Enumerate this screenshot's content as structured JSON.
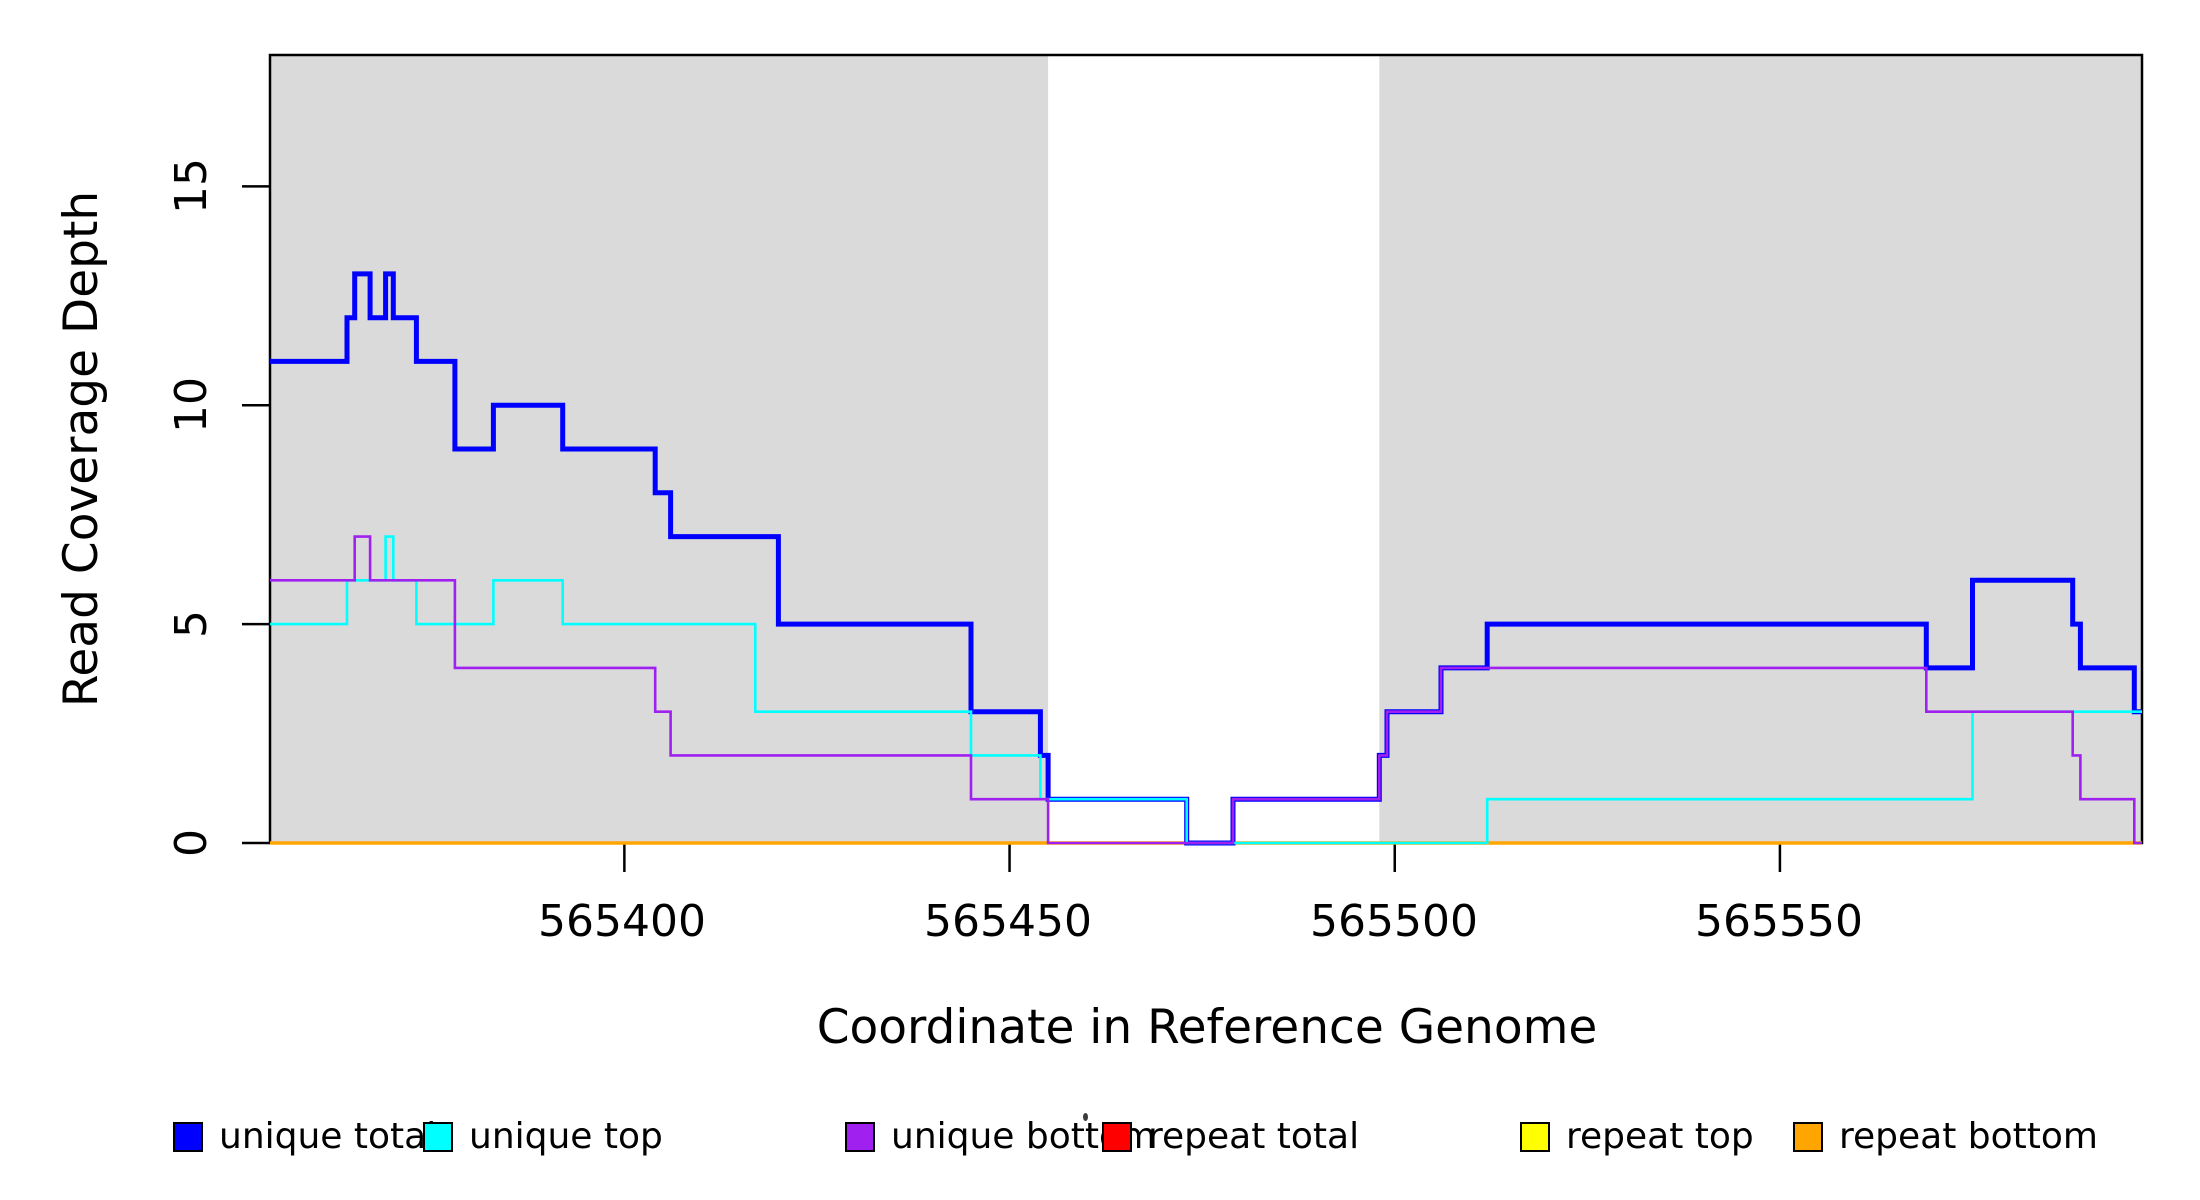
{
  "figure": {
    "background": "#ffffff",
    "band_color": "#dadada",
    "axis_color": "#000000"
  },
  "chart_data": {
    "type": "line",
    "subtype": "step",
    "title": "",
    "xlabel": "Coordinate in Reference Genome",
    "ylabel": "Read Coverage Depth",
    "xlim": [
      565354,
      565597
    ],
    "ylim": [
      0,
      18
    ],
    "grid": false,
    "legend_position": "bottom",
    "x_ticks": [
      {
        "value": 565400,
        "label": "565400"
      },
      {
        "value": 565450,
        "label": "565450"
      },
      {
        "value": 565500,
        "label": "565500"
      },
      {
        "value": 565550,
        "label": "565550"
      }
    ],
    "y_ticks": [
      {
        "value": 0,
        "label": "0"
      },
      {
        "value": 5,
        "label": "5"
      },
      {
        "value": 10,
        "label": "10"
      },
      {
        "value": 15,
        "label": "15"
      }
    ],
    "shaded_regions": [
      {
        "from": 565354,
        "to": 565455
      },
      {
        "from": 565498,
        "to": 565597
      }
    ],
    "draw_order": [
      "repeat_total",
      "repeat_top",
      "repeat_bottom",
      "unique_total",
      "unique_top",
      "unique_bottom"
    ],
    "series": {
      "unique_total": {
        "name": "unique total",
        "color": "#0000ff",
        "line_width": 5,
        "points": [
          [
            565354,
            11
          ],
          [
            565364,
            12
          ],
          [
            565365,
            13
          ],
          [
            565367,
            12
          ],
          [
            565369,
            13
          ],
          [
            565370,
            12
          ],
          [
            565373,
            11
          ],
          [
            565378,
            9
          ],
          [
            565383,
            10
          ],
          [
            565392,
            9
          ],
          [
            565404,
            8
          ],
          [
            565406,
            7
          ],
          [
            565420,
            5
          ],
          [
            565445,
            3
          ],
          [
            565454,
            2
          ],
          [
            565455,
            1
          ],
          [
            565473,
            0
          ],
          [
            565479,
            1
          ],
          [
            565498,
            2
          ],
          [
            565499,
            3
          ],
          [
            565506,
            4
          ],
          [
            565512,
            5
          ],
          [
            565569,
            4
          ],
          [
            565575,
            6
          ],
          [
            565588,
            5
          ],
          [
            565589,
            4
          ],
          [
            565596,
            3
          ],
          [
            565597,
            3
          ]
        ]
      },
      "unique_top": {
        "name": "unique top",
        "color": "#00ffff",
        "line_width": 2.6,
        "points": [
          [
            565354,
            5
          ],
          [
            565364,
            6
          ],
          [
            565369,
            7
          ],
          [
            565370,
            6
          ],
          [
            565373,
            5
          ],
          [
            565383,
            6
          ],
          [
            565392,
            5
          ],
          [
            565417,
            3
          ],
          [
            565445,
            2
          ],
          [
            565454,
            1
          ],
          [
            565473,
            0
          ],
          [
            565512,
            1
          ],
          [
            565575,
            3
          ],
          [
            565597,
            3
          ]
        ]
      },
      "unique_bottom": {
        "name": "unique bottom",
        "color": "#a020f0",
        "line_width": 2.6,
        "points": [
          [
            565354,
            6
          ],
          [
            565365,
            7
          ],
          [
            565367,
            6
          ],
          [
            565378,
            4
          ],
          [
            565404,
            3
          ],
          [
            565406,
            2
          ],
          [
            565445,
            1
          ],
          [
            565455,
            0
          ],
          [
            565479,
            1
          ],
          [
            565498,
            2
          ],
          [
            565499,
            3
          ],
          [
            565506,
            4
          ],
          [
            565569,
            3
          ],
          [
            565588,
            2
          ],
          [
            565589,
            1
          ],
          [
            565596,
            0
          ],
          [
            565597,
            0
          ]
        ]
      },
      "repeat_total": {
        "name": "repeat total",
        "color": "#ff0000",
        "line_width": 2.6,
        "points": [
          [
            565354,
            0
          ],
          [
            565597,
            0
          ]
        ]
      },
      "repeat_top": {
        "name": "repeat top",
        "color": "#ffff00",
        "line_width": 2.6,
        "points": [
          [
            565354,
            0
          ],
          [
            565597,
            0
          ]
        ]
      },
      "repeat_bottom": {
        "name": "repeat bottom",
        "color": "#ffa500",
        "line_width": 3.4,
        "points": [
          [
            565354,
            0
          ],
          [
            565597,
            0
          ]
        ]
      }
    },
    "legend": {
      "items": [
        {
          "label": "unique total",
          "color": "#0000ff"
        },
        {
          "label": "unique top",
          "color": "#00ffff"
        },
        {
          "label": "unique bottom",
          "color": "#a020f0"
        },
        {
          "label": "repeat total",
          "color": "#ff0000"
        },
        {
          "label": "repeat top",
          "color": "#ffff00"
        },
        {
          "label": "repeat bottom",
          "color": "#ffa500"
        }
      ]
    }
  }
}
